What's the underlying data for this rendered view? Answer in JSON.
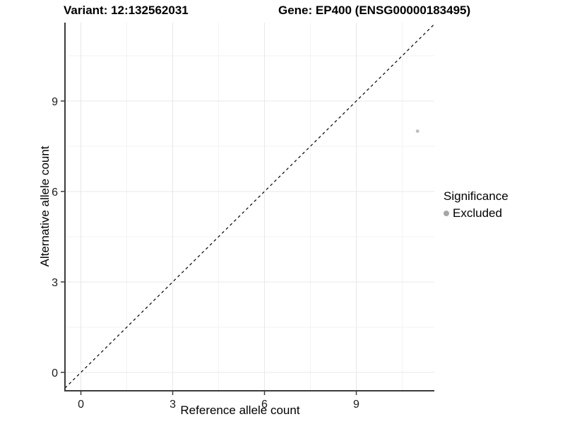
{
  "titles": {
    "variant": "Variant: 12:132562031",
    "gene": "Gene: EP400 (ENSG00000183495)"
  },
  "axes": {
    "x": {
      "label": "Reference allele count",
      "tick_labels": [
        "0",
        "3",
        "6",
        "9"
      ]
    },
    "y": {
      "label": "Alternative allele count",
      "tick_labels": [
        "0",
        "3",
        "6",
        "9"
      ]
    }
  },
  "legend": {
    "title": "Significance",
    "items": [
      {
        "label": "Excluded",
        "key_color": "#a6a6a6"
      }
    ]
  },
  "chart_data": {
    "type": "scatter",
    "title_left": "Variant: 12:132562031",
    "title_right": "Gene: EP400 (ENSG00000183495)",
    "xlabel": "Reference allele count",
    "ylabel": "Alternative allele count",
    "xlim": [
      -0.52,
      11.55
    ],
    "ylim": [
      -0.61,
      11.6
    ],
    "x_ticks": [
      0,
      3,
      6,
      9
    ],
    "y_ticks": [
      0,
      3,
      6,
      9
    ],
    "x_minor_ticks": [
      1.5,
      4.5,
      7.5,
      10.5
    ],
    "y_minor_ticks": [
      1.5,
      4.5,
      7.5,
      10.5
    ],
    "grid": true,
    "legend_position": "right",
    "series": [
      {
        "name": "Excluded",
        "color": "#bdbdbd",
        "points": [
          {
            "x": 11,
            "y": 8
          }
        ]
      }
    ],
    "reference_line": {
      "slope": 1,
      "intercept": 0,
      "style": "dashed",
      "color": "#000000"
    }
  },
  "colors": {
    "background": "#ffffff",
    "axis_line": "#3b3b3b",
    "major_grid": "#e8e8e8",
    "minor_grid": "#f3f3f3",
    "tick_text": "#1a1a1a",
    "point": "#bdbdbd"
  }
}
